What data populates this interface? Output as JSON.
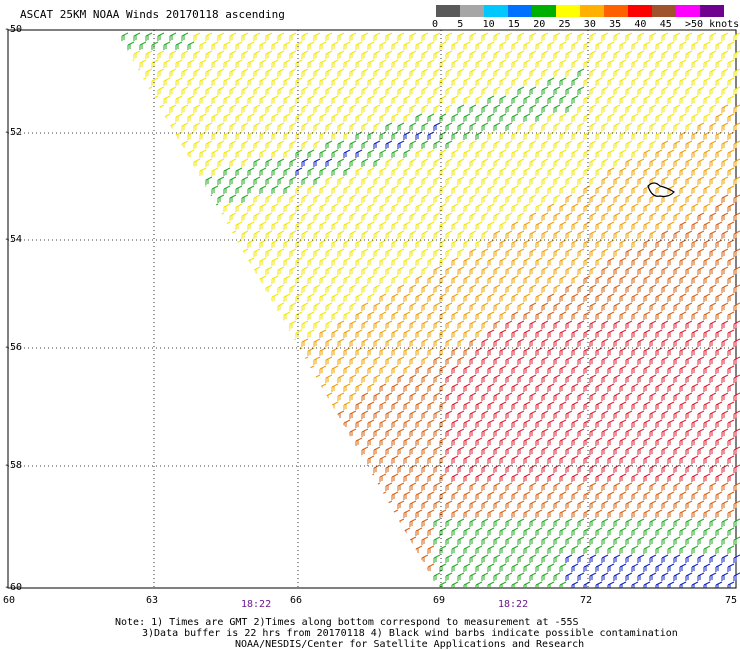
{
  "title": "ASCAT 25KM NOAA Winds 20170118 ascending",
  "legend": {
    "labels": [
      "0",
      "5",
      "10",
      "15",
      "20",
      "25",
      "30",
      "35",
      "40",
      "45",
      ">50 knots"
    ],
    "colors": [
      "#5a5a5a",
      "#a6a6a6",
      "#00c8ff",
      "#0070ff",
      "#00b000",
      "#ffff00",
      "#ffb000",
      "#ff6000",
      "#ff0000",
      "#a0522d",
      "#ff00ff",
      "#700090"
    ]
  },
  "map": {
    "lat_labels": [
      "-50",
      "-52",
      "-54",
      "-56",
      "-58",
      "-60"
    ],
    "lon_labels": [
      "60",
      "63",
      "66",
      "69",
      "72",
      "75"
    ],
    "times": [
      "18:22",
      "18:22"
    ]
  },
  "wind_zones": [
    {
      "name": "light-green band",
      "color": "#22aa22"
    },
    {
      "name": "yellow",
      "color": "#f2e600"
    },
    {
      "name": "orange",
      "color": "#f0a000"
    },
    {
      "name": "dark-orange",
      "color": "#d86010"
    },
    {
      "name": "red",
      "color": "#e02030"
    },
    {
      "name": "blue",
      "color": "#1020c0"
    }
  ],
  "notes": {
    "line1": "Note: 1) Times are GMT 2)Times along bottom correspond to measurement at -55S",
    "line2": "3)Data buffer is 22 hrs from 20170118 4) Black wind barbs indicate possible contamination",
    "line3": "NOAA/NESDIS/Center for Satellite Applications and Research"
  }
}
